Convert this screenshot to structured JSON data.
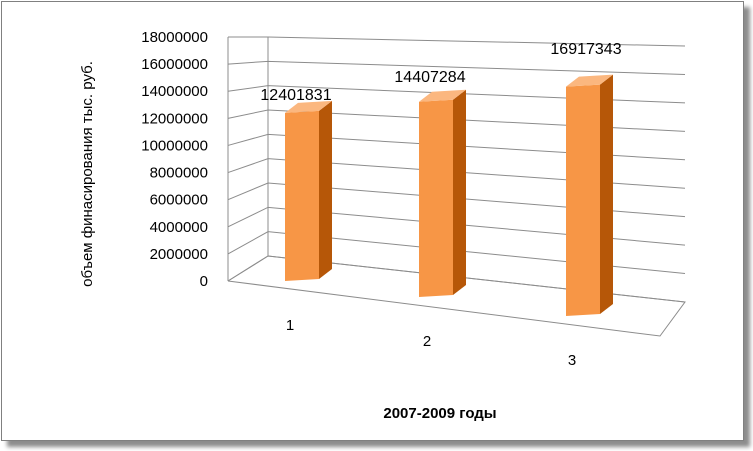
{
  "chart_data": {
    "type": "bar",
    "style": "3d-column",
    "categories": [
      "1",
      "2",
      "3"
    ],
    "values": [
      12401831,
      14407284,
      16917343
    ],
    "data_labels": [
      "12401831",
      "14407284",
      "16917343"
    ],
    "title": "",
    "xlabel": "2007-2009 годы",
    "ylabel": "объем финасирования тыс. руб.",
    "ylim": [
      0,
      18000000
    ],
    "y_ticks": [
      "0",
      "2000000",
      "4000000",
      "6000000",
      "8000000",
      "10000000",
      "12000000",
      "14000000",
      "16000000",
      "18000000"
    ],
    "grid": true,
    "legend": "none",
    "colors": {
      "bar_front": "#F79646",
      "bar_side": "#B65708",
      "bar_top": "#FBB77F",
      "grid": "#8C8C8C"
    }
  }
}
